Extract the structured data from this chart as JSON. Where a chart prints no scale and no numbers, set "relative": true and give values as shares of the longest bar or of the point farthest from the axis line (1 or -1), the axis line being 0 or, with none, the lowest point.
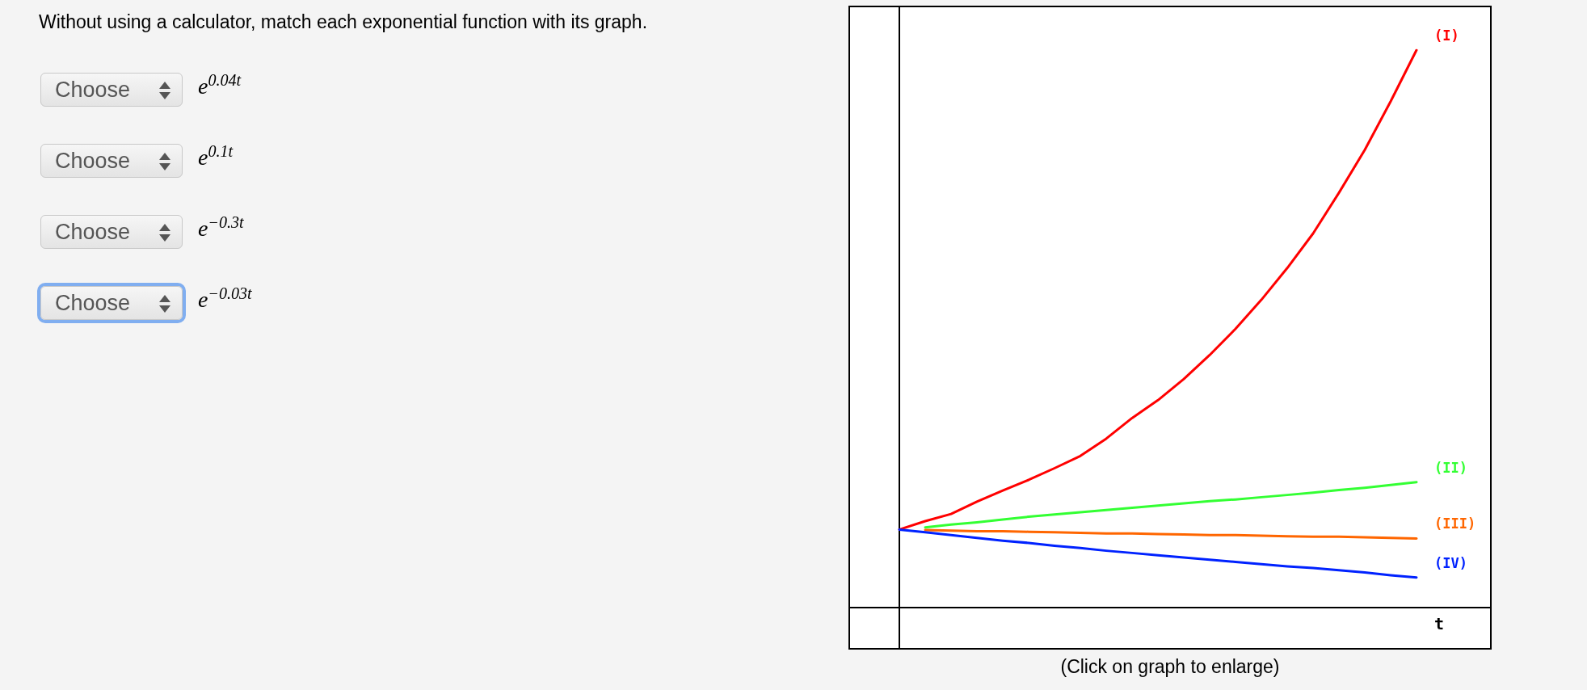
{
  "chart_data": {
    "type": "line",
    "relative": true,
    "title": "Without using a calculator, match each exponential function with its graph.",
    "xlabel": "t",
    "categories": [
      null,
      null,
      null,
      null,
      null,
      null,
      null,
      null,
      null,
      null,
      null,
      null,
      null,
      null,
      null,
      null,
      null,
      null,
      null,
      null,
      null
    ],
    "series": [
      {
        "name": "(I)",
        "color": "#ff0000",
        "values": [
          0.14,
          0.155,
          0.168,
          0.19,
          0.21,
          0.229,
          0.25,
          0.272,
          0.303,
          0.34,
          0.372,
          0.41,
          0.453,
          0.5,
          0.552,
          0.609,
          0.671,
          0.744,
          0.821,
          0.908,
          1
        ]
      },
      {
        "name": "(II)",
        "color": "#33ff33",
        "values": [
          null,
          0.144,
          0.149,
          0.153,
          0.158,
          0.163,
          0.167,
          0.171,
          0.175,
          0.179,
          0.183,
          0.187,
          0.191,
          0.194,
          0.198,
          0.202,
          0.206,
          0.211,
          0.215,
          0.22,
          0.225
        ]
      },
      {
        "name": "(III)",
        "color": "#ff6600",
        "values": [
          null,
          0.139,
          0.138,
          0.137,
          0.137,
          0.136,
          0.135,
          0.134,
          0.133,
          0.133,
          0.132,
          0.131,
          0.13,
          0.13,
          0.129,
          0.128,
          0.127,
          0.127,
          0.126,
          0.125,
          0.124
        ]
      },
      {
        "name": "(IV)",
        "color": "#0022ff",
        "values": [
          0.14,
          0.135,
          0.13,
          0.125,
          0.12,
          0.116,
          0.111,
          0.107,
          0.102,
          0.098,
          0.094,
          0.09,
          0.086,
          0.082,
          0.078,
          0.074,
          0.071,
          0.067,
          0.063,
          0.058,
          0.054
        ]
      }
    ],
    "legend": false,
    "marker": "none",
    "line_style": "solid",
    "grid": false,
    "annotations": [
      "Choose",
      "e$^{0.04t}$",
      "Choose",
      "e$^{0.1t}$",
      "Choose",
      "e$^{−0.3t}$",
      "Choose",
      "e$^{−0.03t}$",
      "(Click on graph to enlarge)"
    ]
  }
}
